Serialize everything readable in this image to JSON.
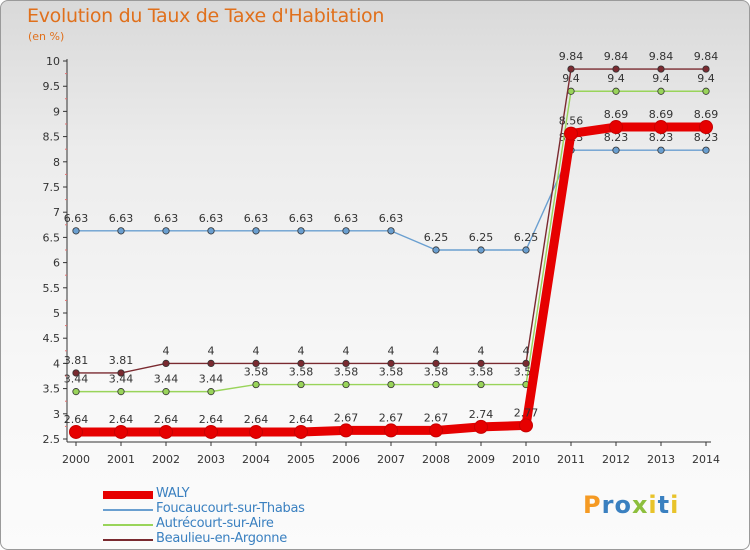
{
  "header": {
    "title": "Evolution du Taux de Taxe d'Habitation",
    "subtitle": "(en %)"
  },
  "logo": {
    "letters": [
      "P",
      "r",
      "o",
      "x",
      "i",
      "t",
      "i"
    ],
    "colors": [
      "#f59a23",
      "#3a80c0",
      "#3a80c0",
      "#8dbf3d",
      "#e8c32a",
      "#3a80c0",
      "#e8c32a"
    ]
  },
  "chart_data": {
    "type": "line",
    "title": "Evolution du Taux de Taxe d'Habitation",
    "ylabel": "(en %)",
    "xlabel": "",
    "x": [
      "2000",
      "2001",
      "2002",
      "2003",
      "2004",
      "2005",
      "2006",
      "2007",
      "2008",
      "2009",
      "2010",
      "2011",
      "2012",
      "2013",
      "2014"
    ],
    "ylim": [
      2.5,
      10
    ],
    "yticks": [
      "2.5",
      "3",
      "3.5",
      "4",
      "4.5",
      "5",
      "5.5",
      "6",
      "6.5",
      "7",
      "7.5",
      "8",
      "8.5",
      "9",
      "9.5",
      "10"
    ],
    "grid": false,
    "legend_position": "bottom-left",
    "series": [
      {
        "name": "Foucaucourt-sur-Thabas",
        "color": "#6a9fd0",
        "values": [
          6.63,
          6.63,
          6.63,
          6.63,
          6.63,
          6.63,
          6.63,
          6.63,
          6.25,
          6.25,
          6.25,
          8.23,
          8.23,
          8.23,
          8.23
        ],
        "labels": [
          "6.63",
          "6.63",
          "6.63",
          "6.63",
          "6.63",
          "6.63",
          "6.63",
          "6.63",
          "6.25",
          "6.25",
          "6.25",
          "8.23",
          "8.23",
          "8.23",
          "8.23"
        ]
      },
      {
        "name": "Autrécourt-sur-Aire",
        "color": "#99d45a",
        "values": [
          3.44,
          3.44,
          3.44,
          3.44,
          3.58,
          3.58,
          3.58,
          3.58,
          3.58,
          3.58,
          3.58,
          9.4,
          9.4,
          9.4,
          9.4
        ],
        "labels": [
          "3.44",
          "3.44",
          "3.44",
          "3.44",
          "3.58",
          "3.58",
          "3.58",
          "3.58",
          "3.58",
          "3.58",
          "3.58",
          "9.4",
          "9.4",
          "9.4",
          "9.4"
        ]
      },
      {
        "name": "Beaulieu-en-Argonne",
        "color": "#7a2a30",
        "values": [
          3.81,
          3.81,
          4,
          4,
          4,
          4,
          4,
          4,
          4,
          4,
          4,
          9.84,
          9.84,
          9.84,
          9.84
        ],
        "labels": [
          "3.81",
          "3.81",
          "4",
          "4",
          "4",
          "4",
          "4",
          "4",
          "4",
          "4",
          "4",
          "9.84",
          "9.84",
          "9.84",
          "9.84"
        ]
      },
      {
        "name": "WALY",
        "color": "#e60000",
        "values": [
          2.64,
          2.64,
          2.64,
          2.64,
          2.64,
          2.64,
          2.67,
          2.67,
          2.67,
          2.74,
          2.77,
          8.56,
          8.69,
          8.69,
          8.69
        ],
        "labels": [
          "2.64",
          "2.64",
          "2.64",
          "2.64",
          "2.64",
          "2.64",
          "2.67",
          "2.67",
          "2.67",
          "2.74",
          "2.77",
          "8.56",
          "8.69",
          "8.69",
          "8.69"
        ]
      }
    ],
    "legend_order": [
      "WALY",
      "Foucaucourt-sur-Thabas",
      "Autrécourt-sur-Aire",
      "Beaulieu-en-Argonne"
    ]
  }
}
